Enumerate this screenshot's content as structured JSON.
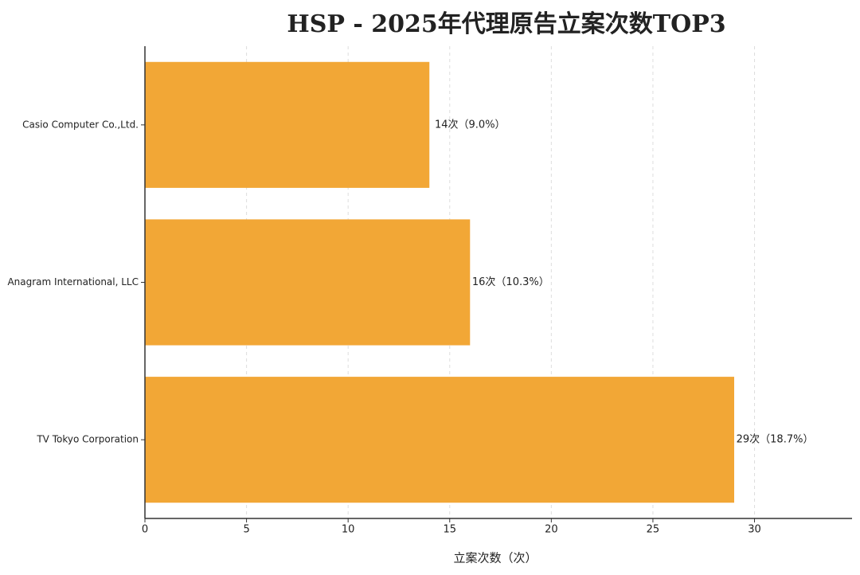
{
  "chart_data": {
    "type": "bar",
    "orientation": "horizontal",
    "title": "HSP - 2025年代理原告立案次数TOP3",
    "x_label": "立案次数（次）",
    "categories": [
      "Casio Computer Co.,Ltd.",
      "Anagram International, LLC",
      "TV Tokyo Corporation"
    ],
    "values": [
      14,
      16,
      29
    ],
    "value_labels": [
      "14次（9.0%）",
      "16次（10.3%）",
      "29次（18.7%）"
    ],
    "color": "#f2a736",
    "xlim": [
      0,
      34.8
    ],
    "xticks": [
      0,
      5,
      10,
      15,
      20,
      25,
      30
    ],
    "grid": true
  }
}
